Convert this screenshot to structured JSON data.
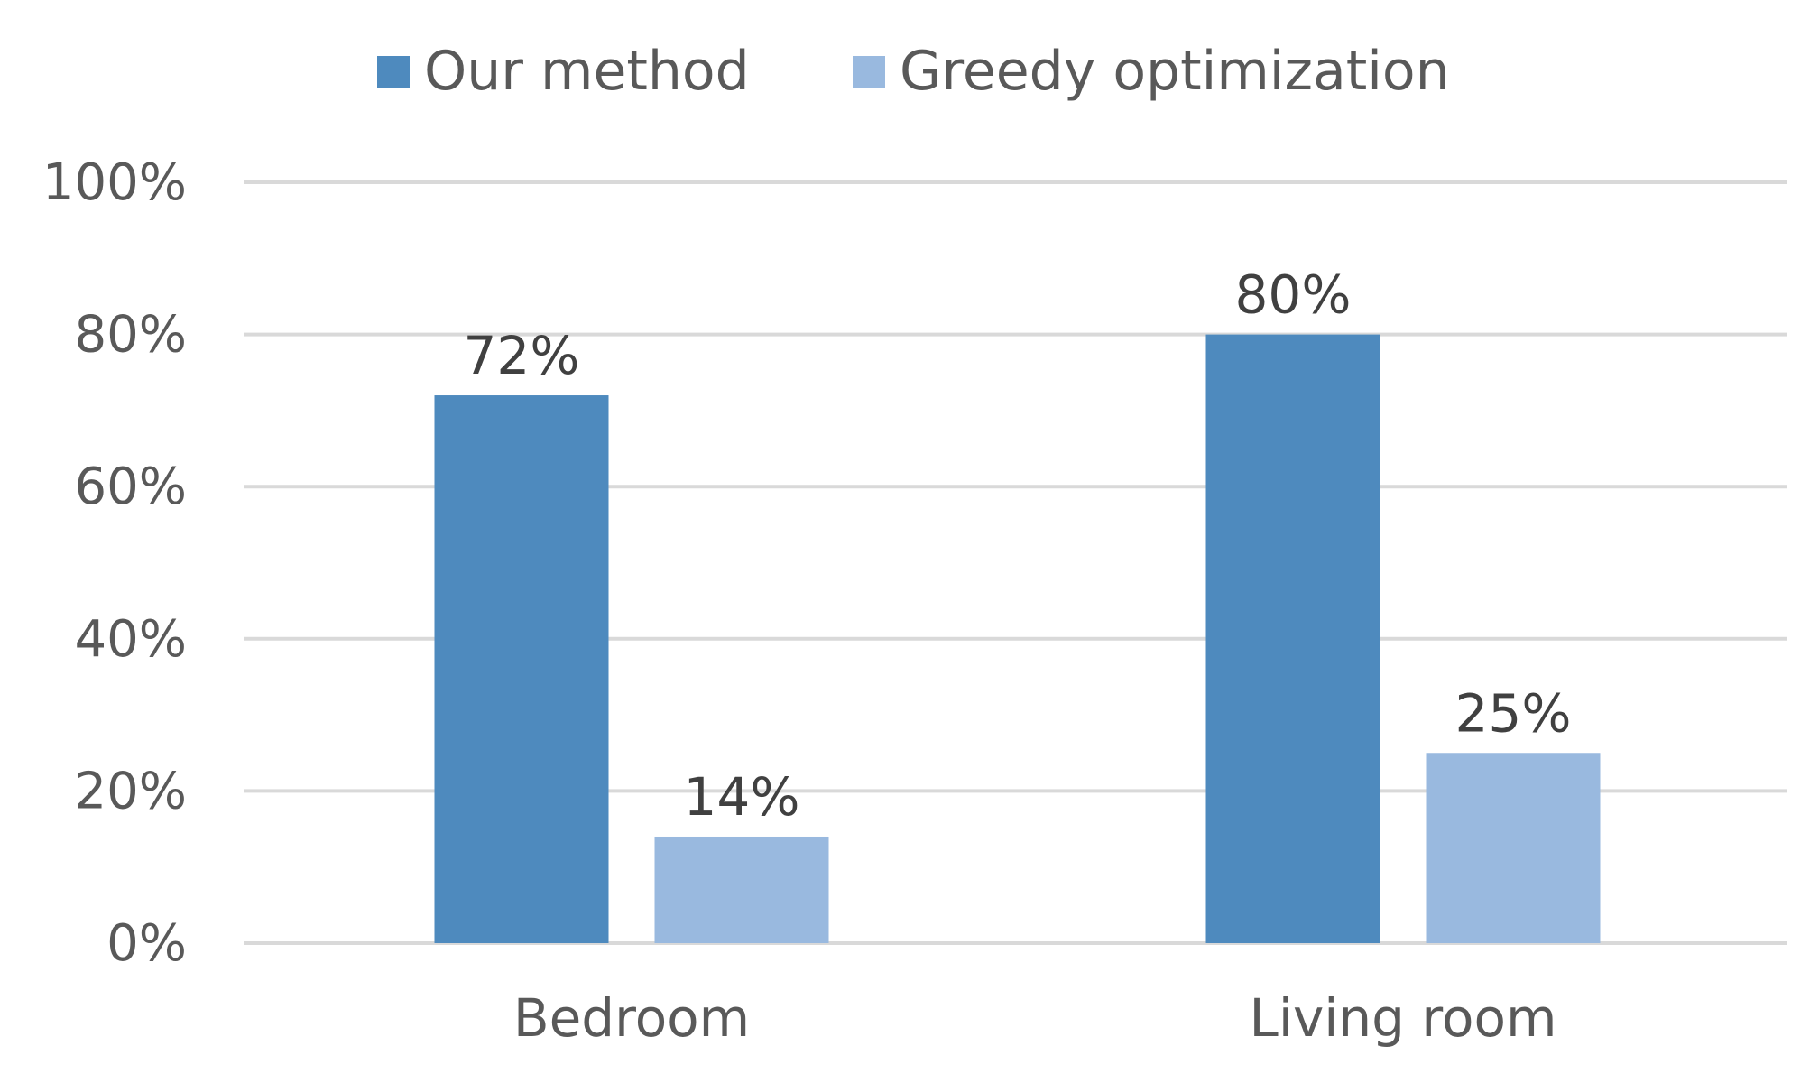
{
  "chart_data": {
    "type": "bar",
    "title": "",
    "xlabel": "",
    "ylabel": "",
    "categories": [
      "Bedroom",
      "Living room"
    ],
    "series": [
      {
        "name": "Our method",
        "values": [
          72,
          80
        ],
        "labels": [
          "72%",
          "80%"
        ],
        "color": "#4e8abe"
      },
      {
        "name": "Greedy optimization",
        "values": [
          14,
          25
        ],
        "labels": [
          "14%",
          "25%"
        ],
        "color": "#99b9df"
      }
    ],
    "ylim": [
      0,
      100
    ],
    "yticks": [
      0,
      20,
      40,
      60,
      80,
      100
    ],
    "ytick_labels": [
      "0%",
      "20%",
      "40%",
      "60%",
      "80%",
      "100%"
    ],
    "grid": "horizontal",
    "legend_position": "top-center",
    "colors": {
      "gridline": "#d9d9d9",
      "axis_text": "#595959",
      "data_label_text": "#404040"
    }
  }
}
